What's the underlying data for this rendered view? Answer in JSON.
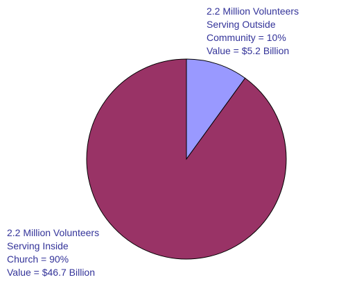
{
  "chart_data": {
    "type": "pie",
    "title": "",
    "slices": [
      {
        "name": "Serving Outside Community",
        "value": 10,
        "color": "#9999ff",
        "label_lines": [
          "2.2 Million Volunteers",
          "Serving Outside",
          "Community = 10%",
          "Value = $5.2 Billion"
        ]
      },
      {
        "name": "Serving Inside Church",
        "value": 90,
        "color": "#993366",
        "label_lines": [
          "2.2 Million Volunteers",
          "Serving Inside",
          "Church = 90%",
          "Value = $46.7 Billion"
        ]
      }
    ],
    "label_color": "#333399",
    "outline_color": "#000000",
    "start": "12 o'clock, clockwise"
  }
}
